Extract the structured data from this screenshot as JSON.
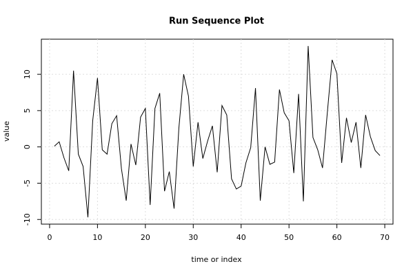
{
  "chart_data": {
    "type": "line",
    "title": "Run Sequence Plot",
    "x_label": "time or index",
    "y_label": "value",
    "x": [
      1,
      2,
      3,
      4,
      5,
      6,
      7,
      8,
      9,
      10,
      11,
      12,
      13,
      14,
      15,
      16,
      17,
      18,
      19,
      20,
      21,
      22,
      23,
      24,
      25,
      26,
      27,
      28,
      29,
      30,
      31,
      32,
      33,
      34,
      35,
      36,
      37,
      38,
      39,
      40,
      41,
      42,
      43,
      44,
      45,
      46,
      47,
      48,
      49,
      50,
      51,
      52,
      53,
      54,
      55,
      56,
      57,
      58,
      59,
      60,
      61,
      62,
      63,
      64,
      65,
      66,
      67,
      68,
      69
    ],
    "series": [
      {
        "name": "value",
        "color": "#000000",
        "values": [
          0.1,
          0.7,
          -1.5,
          -3.3,
          10.5,
          -1.0,
          -2.7,
          -9.7,
          3.6,
          9.5,
          -0.4,
          -1.0,
          3.2,
          4.3,
          -3.0,
          -7.4,
          0.4,
          -2.5,
          4.1,
          5.3,
          -8.0,
          5.3,
          7.4,
          -6.1,
          -3.4,
          -8.5,
          2.6,
          10.0,
          7.0,
          -2.7,
          3.4,
          -1.6,
          0.8,
          2.9,
          -3.5,
          5.7,
          4.4,
          -4.4,
          -5.8,
          -5.4,
          -2.2,
          -0.1,
          8.1,
          -7.4,
          0.0,
          -2.4,
          -2.1,
          7.9,
          4.7,
          3.6,
          -3.6,
          7.3,
          -7.5,
          13.9,
          1.3,
          -0.4,
          -2.9,
          4.7,
          12.0,
          10.1,
          -2.2,
          4.0,
          0.6,
          3.4,
          -2.9,
          4.4,
          1.4,
          -0.5,
          -1.2
        ]
      }
    ],
    "xlim": [
      -1.72,
      71.72
    ],
    "xticks": [
      0,
      10,
      20,
      30,
      40,
      50,
      60,
      70
    ],
    "ylim": [
      -10.64,
      14.84
    ],
    "yticks": [
      -10,
      -5,
      0,
      5,
      10
    ],
    "grid": true
  }
}
